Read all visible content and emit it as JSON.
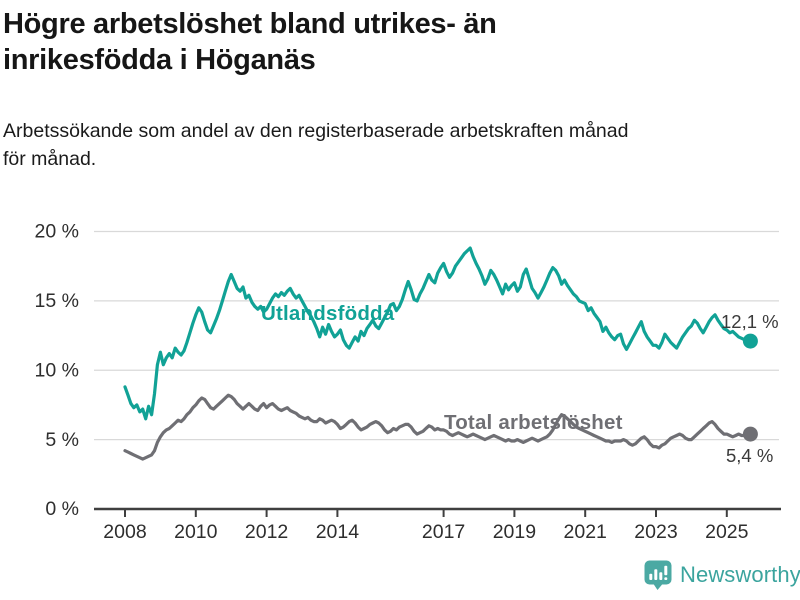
{
  "header": {
    "title_line1": "Högre arbetslöshet bland utrikes- än",
    "title_line2": "inrikesfödda i Höganäs",
    "subtitle_line1": "Arbetssökande som andel av den registerbaserade arbetskraften månad",
    "subtitle_line2": "för månad."
  },
  "branding": {
    "name": "Newsworthy",
    "icon": "newsworthy-speech-bubble-bar-chart-icon"
  },
  "colors": {
    "foreign_born_line": "#11A296",
    "total_line": "#6F6F74",
    "grid": "#D9D9D9",
    "axis": "#3F3F3F",
    "tick_text": "#2E2E2E",
    "value_label_text": "#3A3A3A",
    "brand_icon": "#4BA9A3",
    "brand_text": "#3BA49E"
  },
  "chart_data": {
    "type": "line",
    "title": "Högre arbetslöshet bland utrikes- än inrikesfödda i Höganäs",
    "subtitle": "Arbetssökande som andel av den registerbaserade arbetskraften månad för månad.",
    "x_unit": "month",
    "x_start": "2008-01",
    "x_end": "2025-09",
    "x_tick_years": [
      2008,
      2010,
      2012,
      2014,
      2017,
      2019,
      2021,
      2023,
      2025
    ],
    "y_ticks": [
      {
        "value": 0,
        "label": "0 %"
      },
      {
        "value": 5,
        "label": "5 %"
      },
      {
        "value": 10,
        "label": "10 %"
      },
      {
        "value": 15,
        "label": "15 %"
      },
      {
        "value": 20,
        "label": "20 %"
      }
    ],
    "ylim": [
      0,
      20
    ],
    "grid": "horizontal",
    "legend": "inline-labels",
    "series": [
      {
        "name": "Utlandsfödda",
        "color": "#11A296",
        "end_label": "12,1 %",
        "latest_value": 12.1,
        "values": [
          8.8,
          8.2,
          7.6,
          7.3,
          7.5,
          7.0,
          7.2,
          6.5,
          7.4,
          6.8,
          8.3,
          10.4,
          11.3,
          10.4,
          10.9,
          11.2,
          10.9,
          11.6,
          11.3,
          11.1,
          11.4,
          12.0,
          12.7,
          13.4,
          14.0,
          14.5,
          14.2,
          13.5,
          12.9,
          12.7,
          13.2,
          13.7,
          14.3,
          15.0,
          15.7,
          16.4,
          16.9,
          16.4,
          15.9,
          15.7,
          16.0,
          15.2,
          15.4,
          14.9,
          14.6,
          14.4,
          14.6,
          14.2,
          14.4,
          14.8,
          15.2,
          15.5,
          15.3,
          15.6,
          15.4,
          15.7,
          15.9,
          15.5,
          15.2,
          15.4,
          15.0,
          14.6,
          14.2,
          13.9,
          13.5,
          13.0,
          12.4,
          13.1,
          12.6,
          13.3,
          12.8,
          12.4,
          12.6,
          12.9,
          12.2,
          11.8,
          11.6,
          12.0,
          12.4,
          12.1,
          12.8,
          12.5,
          13.0,
          13.3,
          13.6,
          13.2,
          13.0,
          13.4,
          13.8,
          14.2,
          14.7,
          14.8,
          14.3,
          14.6,
          15.1,
          15.8,
          16.4,
          15.8,
          15.1,
          15.0,
          15.5,
          15.9,
          16.4,
          16.9,
          16.5,
          16.3,
          17.0,
          17.4,
          17.7,
          17.1,
          16.7,
          17.0,
          17.5,
          17.8,
          18.1,
          18.4,
          18.6,
          18.8,
          18.2,
          17.7,
          17.3,
          16.8,
          16.2,
          16.6,
          17.2,
          16.9,
          16.5,
          16.0,
          15.5,
          16.2,
          15.8,
          16.1,
          16.3,
          15.7,
          16.0,
          16.9,
          17.3,
          16.6,
          15.9,
          15.6,
          15.2,
          15.6,
          16.0,
          16.5,
          17.0,
          17.4,
          17.2,
          16.8,
          16.2,
          16.5,
          16.1,
          15.8,
          15.5,
          15.3,
          15.0,
          14.9,
          14.8,
          14.3,
          14.5,
          14.1,
          13.8,
          13.5,
          12.8,
          13.1,
          12.7,
          12.4,
          12.2,
          12.5,
          12.6,
          11.9,
          11.5,
          11.9,
          12.3,
          12.7,
          13.1,
          13.5,
          12.8,
          12.4,
          12.1,
          11.8,
          11.8,
          11.6,
          12.0,
          12.6,
          12.3,
          12.0,
          11.8,
          11.6,
          12.0,
          12.4,
          12.7,
          13.0,
          13.2,
          13.6,
          13.4,
          13.0,
          12.7,
          13.1,
          13.5,
          13.8,
          14.0,
          13.6,
          13.3,
          13.0,
          12.9,
          12.7,
          12.8,
          12.6,
          12.4,
          12.3,
          12.2,
          12.1,
          12.1
        ]
      },
      {
        "name": "Total arbetslöshet",
        "color": "#6F6F74",
        "end_label": "5,4 %",
        "latest_value": 5.4,
        "values": [
          4.2,
          4.1,
          4.0,
          3.9,
          3.8,
          3.7,
          3.6,
          3.7,
          3.8,
          3.9,
          4.2,
          4.8,
          5.2,
          5.5,
          5.7,
          5.8,
          6.0,
          6.2,
          6.4,
          6.3,
          6.5,
          6.8,
          7.0,
          7.3,
          7.5,
          7.8,
          8.0,
          7.9,
          7.6,
          7.3,
          7.2,
          7.4,
          7.6,
          7.8,
          8.0,
          8.2,
          8.1,
          7.9,
          7.6,
          7.4,
          7.2,
          7.4,
          7.6,
          7.4,
          7.2,
          7.1,
          7.4,
          7.6,
          7.3,
          7.5,
          7.6,
          7.4,
          7.2,
          7.1,
          7.2,
          7.3,
          7.1,
          7.0,
          6.9,
          6.7,
          6.6,
          6.5,
          6.6,
          6.4,
          6.3,
          6.3,
          6.5,
          6.4,
          6.2,
          6.3,
          6.4,
          6.3,
          6.1,
          5.8,
          5.9,
          6.1,
          6.3,
          6.4,
          6.2,
          5.9,
          5.7,
          5.8,
          5.9,
          6.1,
          6.2,
          6.3,
          6.2,
          6.0,
          5.7,
          5.5,
          5.6,
          5.8,
          5.7,
          5.9,
          6.0,
          6.1,
          6.1,
          5.9,
          5.6,
          5.4,
          5.5,
          5.6,
          5.8,
          6.0,
          5.9,
          5.7,
          5.8,
          5.7,
          5.7,
          5.6,
          5.4,
          5.3,
          5.4,
          5.5,
          5.4,
          5.3,
          5.2,
          5.3,
          5.4,
          5.3,
          5.2,
          5.1,
          5.0,
          5.1,
          5.2,
          5.3,
          5.2,
          5.1,
          5.0,
          4.9,
          5.0,
          4.9,
          4.9,
          5.0,
          4.9,
          4.8,
          4.9,
          5.0,
          5.1,
          5.0,
          4.9,
          5.0,
          5.1,
          5.2,
          5.4,
          5.7,
          6.1,
          6.5,
          6.8,
          6.7,
          6.5,
          6.3,
          6.1,
          5.9,
          5.8,
          5.7,
          5.6,
          5.5,
          5.4,
          5.3,
          5.2,
          5.1,
          5.0,
          4.9,
          4.9,
          4.8,
          4.9,
          4.9,
          4.9,
          5.0,
          4.9,
          4.7,
          4.6,
          4.7,
          4.9,
          5.1,
          5.2,
          5.0,
          4.7,
          4.5,
          4.5,
          4.4,
          4.6,
          4.7,
          4.9,
          5.1,
          5.2,
          5.3,
          5.4,
          5.3,
          5.1,
          5.0,
          5.0,
          5.2,
          5.4,
          5.6,
          5.8,
          6.0,
          6.2,
          6.3,
          6.1,
          5.8,
          5.6,
          5.4,
          5.4,
          5.3,
          5.2,
          5.3,
          5.4,
          5.3,
          5.3,
          5.4,
          5.4
        ]
      }
    ]
  }
}
